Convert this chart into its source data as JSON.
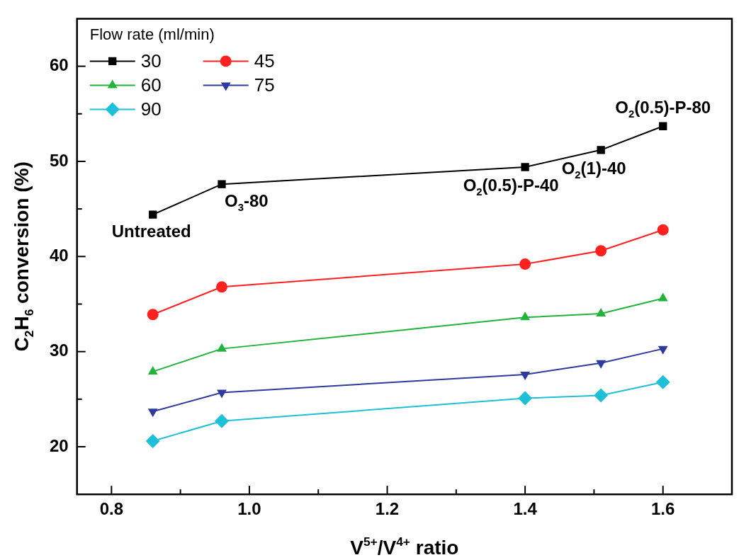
{
  "chart_data": {
    "type": "line",
    "xlabel": "V$^{5+}$/V$^{4+}$ ratio",
    "ylabel": "C$_{2}$H$_{6}$ conversion (%)",
    "legend_title": "Flow rate (ml/min)",
    "x": [
      0.86,
      0.96,
      1.4,
      1.51,
      1.6
    ],
    "series": [
      {
        "name": "30",
        "color": "#000000",
        "marker": "square",
        "values": [
          44.4,
          47.6,
          49.4,
          51.2,
          53.7
        ]
      },
      {
        "name": "45",
        "color": "#ff2020",
        "marker": "circle",
        "values": [
          33.9,
          36.8,
          39.2,
          40.6,
          42.8
        ]
      },
      {
        "name": "60",
        "color": "#22b33a",
        "marker": "triangle",
        "values": [
          27.9,
          30.3,
          33.6,
          34.0,
          35.6
        ]
      },
      {
        "name": "75",
        "color": "#2e3a9e",
        "marker": "triangle-down",
        "values": [
          23.7,
          25.7,
          27.6,
          28.8,
          30.3
        ]
      },
      {
        "name": "90",
        "color": "#1ec0d8",
        "marker": "diamond",
        "values": [
          20.6,
          22.7,
          25.1,
          25.4,
          26.8
        ]
      }
    ],
    "annotations": [
      {
        "text": "Untreated",
        "x": 0.86,
        "y": 44.4
      },
      {
        "text": "O$_{3}$-80",
        "x": 0.96,
        "y": 47.6
      },
      {
        "text": "O$_{2}$(0.5)-P-40",
        "x": 1.4,
        "y": 49.4
      },
      {
        "text": "O$_{2}$(1)-40",
        "x": 1.51,
        "y": 51.2
      },
      {
        "text": "O$_{2}$(0.5)-P-80",
        "x": 1.6,
        "y": 53.7
      }
    ],
    "xlim": [
      0.75,
      1.7
    ],
    "xticks": [
      0.8,
      {
        "value": 0.9,
        "label": null
      },
      {
        "value": 1.0,
        "label": "1.0"
      },
      {
        "value": 1.1,
        "label": null
      },
      1.2,
      {
        "value": 1.3,
        "label": null
      },
      1.4,
      {
        "value": 1.5,
        "label": null
      },
      1.6
    ],
    "ylim": [
      15,
      65
    ],
    "yticks": [
      20,
      {
        "value": 25,
        "label": null
      },
      30,
      {
        "value": 35,
        "label": null
      },
      40,
      {
        "value": 45,
        "label": null
      },
      50,
      {
        "value": 55,
        "label": null
      },
      60
    ],
    "grid": false,
    "legend": "top left",
    "line_style": "solid"
  }
}
